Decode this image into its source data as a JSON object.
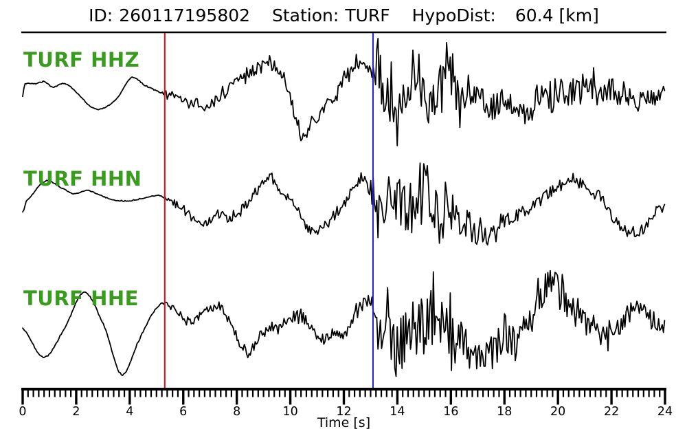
{
  "header": {
    "id_label": "ID:",
    "id_value": "260117195802",
    "station_label": "Station:",
    "station_value": "TURF",
    "hypodist_label": "HypoDist:",
    "hypodist_value": "60.4",
    "hypodist_unit": "[km]"
  },
  "colors": {
    "background": "#ffffff",
    "trace": "#000000",
    "channel_label": "#3a9c1e",
    "axis": "#000000",
    "p_pick": "#f00a0a",
    "s_pick": "#2020dd"
  },
  "chart_data": {
    "type": "line",
    "title": "ID: 260117195802  Station: TURF  HypoDist: 60.4 [km]",
    "xlabel": "Time [s]",
    "x_range": [
      0,
      24
    ],
    "x_major_ticks": [
      0,
      2,
      4,
      6,
      8,
      10,
      12,
      14,
      16,
      18,
      20,
      22,
      24
    ],
    "x_minor_step": 0.2,
    "grid": false,
    "legend": "none",
    "picks": [
      {
        "name": "P-pick",
        "time": 5.31,
        "color": "#f00a0a"
      },
      {
        "name": "S-pick",
        "time": 13.09,
        "color": "#2020dd"
      }
    ],
    "traces": [
      {
        "label": "TURF HHZ",
        "station": "TURF",
        "channel": "HHZ",
        "seed": 11,
        "trend": [
          [
            0,
            1
          ],
          [
            0.07,
            -17
          ],
          [
            0.5,
            -18
          ],
          [
            0.8,
            -21
          ],
          [
            1.15,
            -13
          ],
          [
            1.55,
            -19
          ],
          [
            2.0,
            -6
          ],
          [
            2.6,
            17
          ],
          [
            3.1,
            16
          ],
          [
            3.55,
            2
          ],
          [
            4.05,
            -27
          ],
          [
            4.55,
            -16
          ],
          [
            5.3,
            -3
          ],
          [
            5.9,
            4
          ],
          [
            6.8,
            15
          ],
          [
            7.4,
            -2
          ],
          [
            8.0,
            -22
          ],
          [
            9.0,
            -47
          ],
          [
            9.7,
            -28
          ],
          [
            10.45,
            54
          ],
          [
            11.2,
            22
          ],
          [
            11.9,
            -20
          ],
          [
            12.55,
            -53
          ],
          [
            13.1,
            -32
          ],
          [
            13.6,
            -2
          ],
          [
            14.3,
            6
          ],
          [
            15.5,
            -13
          ],
          [
            16.6,
            -4
          ],
          [
            17.6,
            4
          ],
          [
            18.5,
            20
          ],
          [
            19.6,
            2
          ],
          [
            21.2,
            -13
          ],
          [
            22.3,
            0
          ],
          [
            23.2,
            1
          ],
          [
            24,
            -3
          ]
        ],
        "noise_env": [
          [
            0,
            0.8
          ],
          [
            5.15,
            1
          ],
          [
            5.45,
            7
          ],
          [
            6.5,
            9
          ],
          [
            8,
            11
          ],
          [
            10,
            12
          ],
          [
            12,
            13
          ],
          [
            13.0,
            14
          ],
          [
            13.2,
            58
          ],
          [
            14.2,
            52
          ],
          [
            15.1,
            46
          ],
          [
            15.7,
            54
          ],
          [
            16.3,
            40
          ],
          [
            17.2,
            34
          ],
          [
            18.3,
            26
          ],
          [
            19.3,
            28
          ],
          [
            20.5,
            26
          ],
          [
            21.5,
            23
          ],
          [
            22.5,
            20
          ],
          [
            24,
            17
          ]
        ]
      },
      {
        "label": "TURF HHN",
        "station": "TURF",
        "channel": "HHN",
        "seed": 29,
        "trend": [
          [
            0,
            6
          ],
          [
            0.12,
            -10
          ],
          [
            0.85,
            -40
          ],
          [
            1.5,
            -29
          ],
          [
            1.95,
            -21
          ],
          [
            2.4,
            -26
          ],
          [
            3.0,
            -17
          ],
          [
            3.6,
            -11
          ],
          [
            4.3,
            -13
          ],
          [
            5.0,
            -19
          ],
          [
            5.4,
            -13
          ],
          [
            6.05,
            6
          ],
          [
            6.7,
            23
          ],
          [
            7.25,
            11
          ],
          [
            7.75,
            14
          ],
          [
            8.4,
            -10
          ],
          [
            9.1,
            -44
          ],
          [
            9.9,
            -12
          ],
          [
            10.8,
            31
          ],
          [
            11.7,
            12
          ],
          [
            12.65,
            -41
          ],
          [
            13.1,
            -24
          ],
          [
            13.7,
            2
          ],
          [
            14.6,
            -6
          ],
          [
            15.3,
            2
          ],
          [
            16.3,
            8
          ],
          [
            17.5,
            33
          ],
          [
            18.6,
            4
          ],
          [
            19.5,
            -20
          ],
          [
            20.4,
            -41
          ],
          [
            21.4,
            -15
          ],
          [
            22.55,
            32
          ],
          [
            23.3,
            22
          ],
          [
            24,
            -6
          ]
        ],
        "noise_env": [
          [
            0,
            0.8
          ],
          [
            5.15,
            1.2
          ],
          [
            5.5,
            6
          ],
          [
            7,
            8
          ],
          [
            9,
            9
          ],
          [
            11,
            9
          ],
          [
            12.9,
            10
          ],
          [
            13.25,
            42
          ],
          [
            14.1,
            50
          ],
          [
            15.0,
            56
          ],
          [
            15.8,
            50
          ],
          [
            16.6,
            30
          ],
          [
            17.4,
            20
          ],
          [
            18.2,
            13
          ],
          [
            19.5,
            12
          ],
          [
            21,
            11
          ],
          [
            22.5,
            10
          ],
          [
            24,
            11
          ]
        ]
      },
      {
        "label": "TURF HHE",
        "station": "TURF",
        "channel": "HHE",
        "seed": 47,
        "trend": [
          [
            0,
            8
          ],
          [
            0.8,
            50
          ],
          [
            1.6,
            5
          ],
          [
            2.3,
            -45
          ],
          [
            3.05,
            5
          ],
          [
            3.7,
            75
          ],
          [
            4.4,
            20
          ],
          [
            5.05,
            -24
          ],
          [
            5.55,
            -26
          ],
          [
            6.2,
            -3
          ],
          [
            7.0,
            -19
          ],
          [
            7.5,
            -16
          ],
          [
            8.25,
            38
          ],
          [
            8.9,
            14
          ],
          [
            9.6,
            4
          ],
          [
            10.4,
            -6
          ],
          [
            11.05,
            18
          ],
          [
            11.6,
            24
          ],
          [
            12.3,
            -2
          ],
          [
            12.9,
            -38
          ],
          [
            13.2,
            -18
          ],
          [
            13.9,
            4
          ],
          [
            14.7,
            -6
          ],
          [
            15.4,
            2
          ],
          [
            16.1,
            6
          ],
          [
            17.0,
            28
          ],
          [
            17.8,
            40
          ],
          [
            18.7,
            8
          ],
          [
            19.6,
            -44
          ],
          [
            20.15,
            -38
          ],
          [
            20.9,
            2
          ],
          [
            21.5,
            20
          ],
          [
            22.3,
            -2
          ],
          [
            22.95,
            -24
          ],
          [
            23.6,
            -4
          ],
          [
            24,
            6
          ]
        ],
        "noise_env": [
          [
            0,
            1
          ],
          [
            5.1,
            1.6
          ],
          [
            5.6,
            6
          ],
          [
            6.6,
            7
          ],
          [
            7.6,
            9
          ],
          [
            8.6,
            9
          ],
          [
            9.6,
            10
          ],
          [
            10.6,
            11
          ],
          [
            11.6,
            12
          ],
          [
            12.6,
            14
          ],
          [
            13.05,
            16
          ],
          [
            13.3,
            58
          ],
          [
            14.2,
            64
          ],
          [
            15.1,
            66
          ],
          [
            15.6,
            60
          ],
          [
            16.6,
            46
          ],
          [
            17.6,
            38
          ],
          [
            18.3,
            34
          ],
          [
            19.2,
            30
          ],
          [
            20,
            28
          ],
          [
            21,
            25
          ],
          [
            22,
            22
          ],
          [
            23,
            20
          ],
          [
            24,
            16
          ]
        ]
      }
    ]
  }
}
